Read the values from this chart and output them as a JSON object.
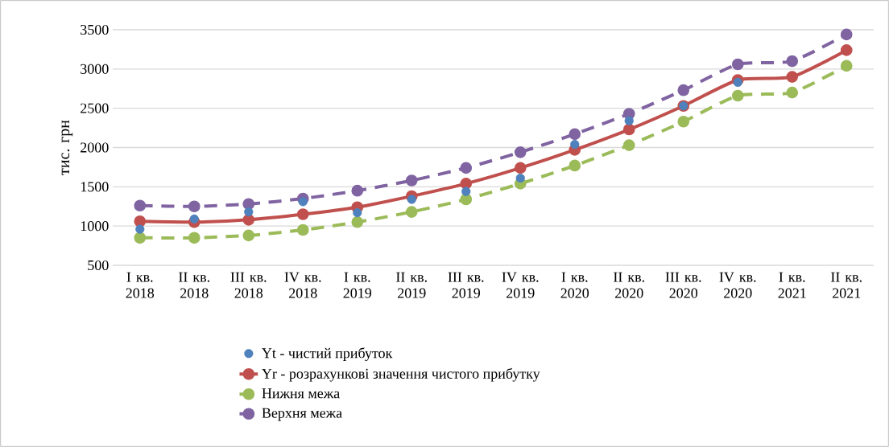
{
  "chart_data": {
    "type": "line",
    "ylabel": "тис. грн",
    "categories": [
      "I кв. 2018",
      "II кв. 2018",
      "III кв. 2018",
      "IV кв. 2018",
      "I кв. 2019",
      "II кв. 2019",
      "III кв. 2019",
      "IV кв. 2019",
      "I кв. 2020",
      "II кв. 2020",
      "III кв. 2020",
      "IV кв. 2020",
      "I кв. 2021",
      "II кв. 2021"
    ],
    "series": [
      {
        "name": "Yt - чистий прибуток",
        "type": "scatter",
        "color": "#4f81bd",
        "values": [
          960,
          1090,
          1180,
          1310,
          1170,
          1340,
          1440,
          1610,
          2040,
          2340,
          2530,
          2830,
          null,
          null
        ]
      },
      {
        "name": "Yr -  розрахункові значення чистого прибутку",
        "line_style": "solid",
        "color": "#c0504d",
        "values": [
          1060,
          1050,
          1080,
          1150,
          1240,
          1380,
          1540,
          1740,
          1970,
          2230,
          2530,
          2860,
          2900,
          3240
        ]
      },
      {
        "name": "Нижня межа",
        "line_style": "dashed",
        "color": "#9bbb59",
        "values": [
          850,
          850,
          880,
          950,
          1050,
          1180,
          1340,
          1540,
          1770,
          2030,
          2330,
          2660,
          2700,
          3040
        ]
      },
      {
        "name": "Верхня межа",
        "line_style": "dashed",
        "color": "#8064a2",
        "values": [
          1260,
          1250,
          1280,
          1350,
          1450,
          1580,
          1740,
          1940,
          2170,
          2430,
          2730,
          3060,
          3100,
          3440
        ]
      }
    ],
    "ylim": [
      500,
      3500
    ],
    "yticks": [
      500,
      1000,
      1500,
      2000,
      2500,
      3000,
      3500
    ],
    "grid": "y",
    "legend": "bottom",
    "marker": "circle"
  }
}
